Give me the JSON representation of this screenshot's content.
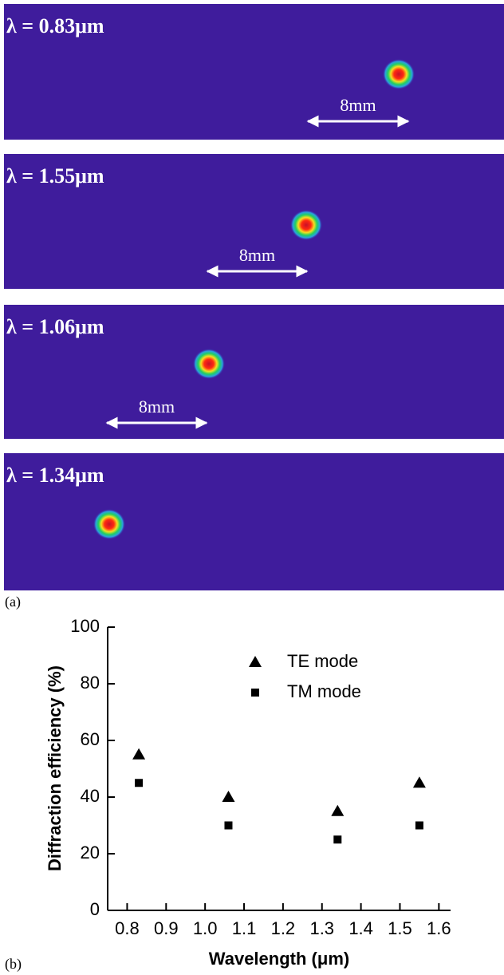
{
  "panel_a": {
    "label": "(a)",
    "images": [
      {
        "label": "λ = 0.83μm",
        "scale": "8mm"
      },
      {
        "label": "λ = 1.55μm",
        "scale": "8mm"
      },
      {
        "label": "λ = 1.06μm",
        "scale": "8mm"
      },
      {
        "label": "λ = 1.34μm"
      }
    ]
  },
  "panel_b_label": "(b)",
  "chart_data": {
    "type": "scatter",
    "xlabel": "Wavelength (μm)",
    "ylabel": "Diffraction efficiency (%)",
    "x": [
      0.83,
      1.06,
      1.34,
      1.55
    ],
    "series": [
      {
        "name": "TE mode",
        "color": "#000000",
        "marker": "triangle",
        "values": [
          55,
          40,
          35,
          45
        ]
      },
      {
        "name": "TM mode",
        "color": "#000000",
        "marker": "square",
        "values": [
          45,
          30,
          25,
          30
        ]
      }
    ],
    "xlim": [
      0.75,
      1.63
    ],
    "ylim": [
      0,
      100
    ],
    "xticks": [
      0.8,
      0.9,
      {
        "value": 1,
        "label": "1.0"
      },
      1.1,
      1.2,
      1.3,
      1.4,
      1.5,
      1.6
    ],
    "yticks": [
      0,
      20,
      40,
      60,
      80,
      100
    ],
    "legend": "upper-right"
  }
}
